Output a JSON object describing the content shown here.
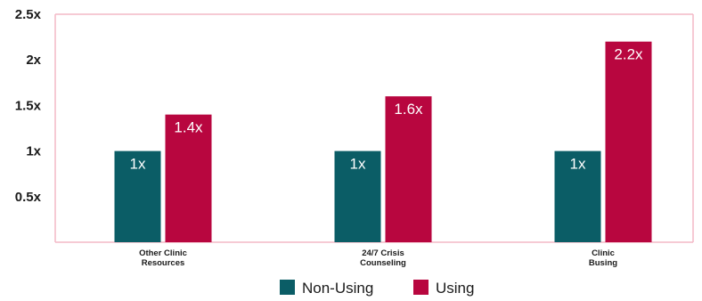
{
  "chart_data": {
    "type": "bar",
    "categories": [
      [
        "Other Clinic",
        "Resources"
      ],
      [
        "24/7 Crisis",
        "Counseling"
      ],
      [
        "Clinic",
        "Busing"
      ]
    ],
    "series": [
      {
        "name": "Non-Using",
        "color": "#0b5d66",
        "values": [
          1,
          1,
          1
        ],
        "labels": [
          "1x",
          "1x",
          "1x"
        ]
      },
      {
        "name": "Using",
        "color": "#b8063f",
        "values": [
          1.4,
          1.6,
          2.2
        ],
        "labels": [
          "1.4x",
          "1.6x",
          "2.2x"
        ]
      }
    ],
    "yticks": [
      {
        "value": 0.5,
        "label": "0.5x"
      },
      {
        "value": 1,
        "label": "1x"
      },
      {
        "value": 1.5,
        "label": "1.5x"
      },
      {
        "value": 2,
        "label": "2x"
      },
      {
        "value": 2.5,
        "label": "2.5x"
      }
    ],
    "ylim": [
      0,
      2.5
    ],
    "frame_color": "#f4b8c6",
    "grid": false,
    "legend_position": "bottom"
  }
}
